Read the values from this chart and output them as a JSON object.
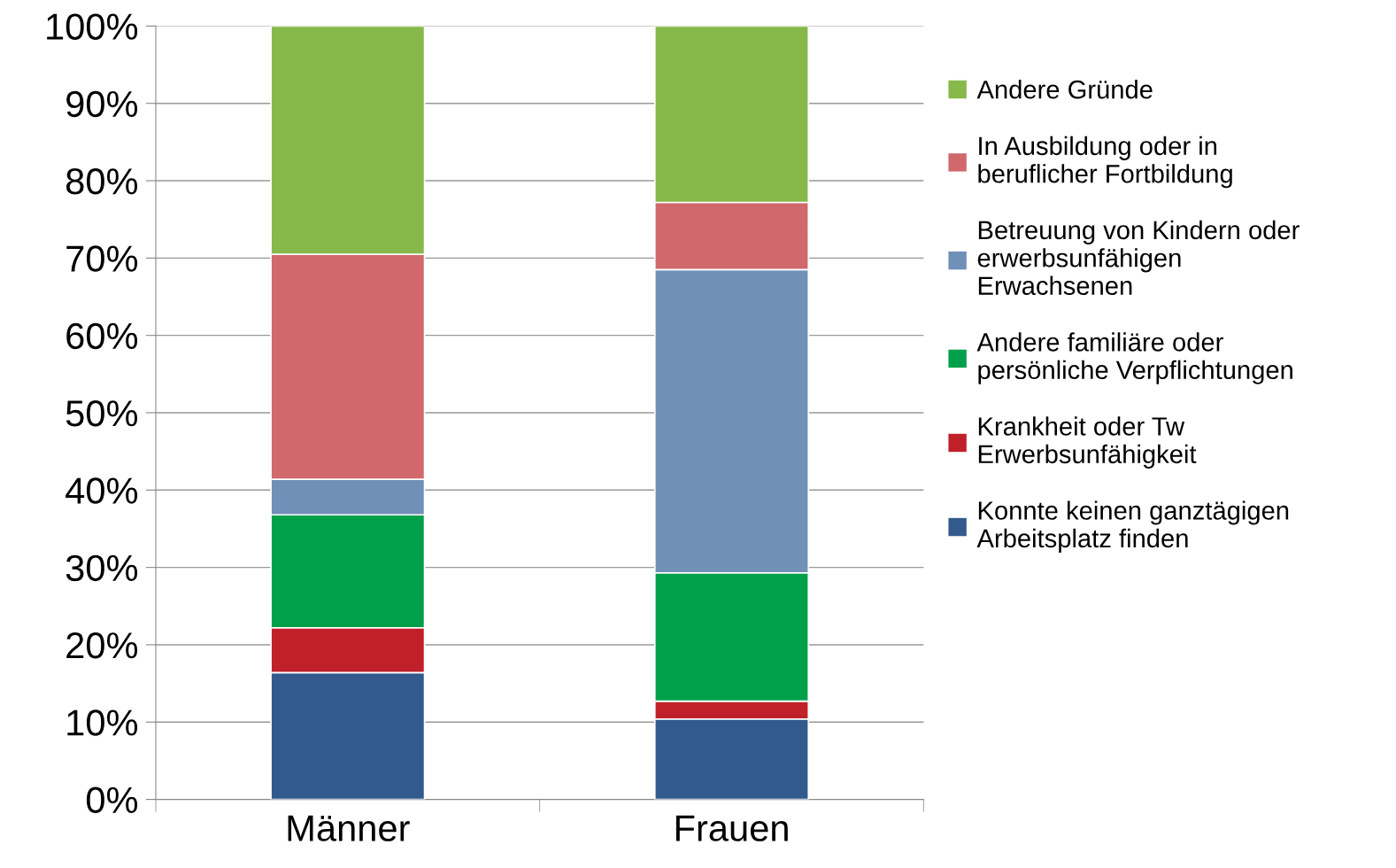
{
  "chart_data": {
    "type": "bar",
    "stacked": true,
    "categories": [
      "Männer",
      "Frauen"
    ],
    "series": [
      {
        "name": "Konnte keinen ganztägigen\nArbeitsplatz finden",
        "color": "#335a8c",
        "values": [
          16.4,
          10.4
        ]
      },
      {
        "name": "Krankheit oder Tw\nErwerbsunfähigkeit",
        "color": "#c0202a",
        "values": [
          5.8,
          2.3
        ]
      },
      {
        "name": "Andere familiäre oder\npersönliche Verpflichtungen",
        "color": "#00a04a",
        "values": [
          14.6,
          16.6
        ]
      },
      {
        "name": "Betreuung von Kindern oder\nerwerbsunfähigen\nErwachsenen",
        "color": "#7090b8",
        "values": [
          4.6,
          39.2
        ]
      },
      {
        "name": "In Ausbildung oder in\nberuflicher Fortbildung",
        "color": "#d0686c",
        "values": [
          29.1,
          8.7
        ]
      },
      {
        "name": "Andere Gründe",
        "color": "#86b94a",
        "values": [
          29.5,
          22.8
        ]
      }
    ],
    "ylim": [
      0,
      100
    ],
    "yticks": [
      {
        "value": 0,
        "label": "0%"
      },
      {
        "value": 10,
        "label": "10%"
      },
      {
        "value": 20,
        "label": "20%"
      },
      {
        "value": 30,
        "label": "30%"
      },
      {
        "value": 40,
        "label": "40%"
      },
      {
        "value": 50,
        "label": "50%"
      },
      {
        "value": 60,
        "label": "60%"
      },
      {
        "value": 70,
        "label": "70%"
      },
      {
        "value": 80,
        "label": "80%"
      },
      {
        "value": 90,
        "label": "90%"
      },
      {
        "value": 100,
        "label": "100%"
      }
    ],
    "grid": "y",
    "legend": "right"
  }
}
